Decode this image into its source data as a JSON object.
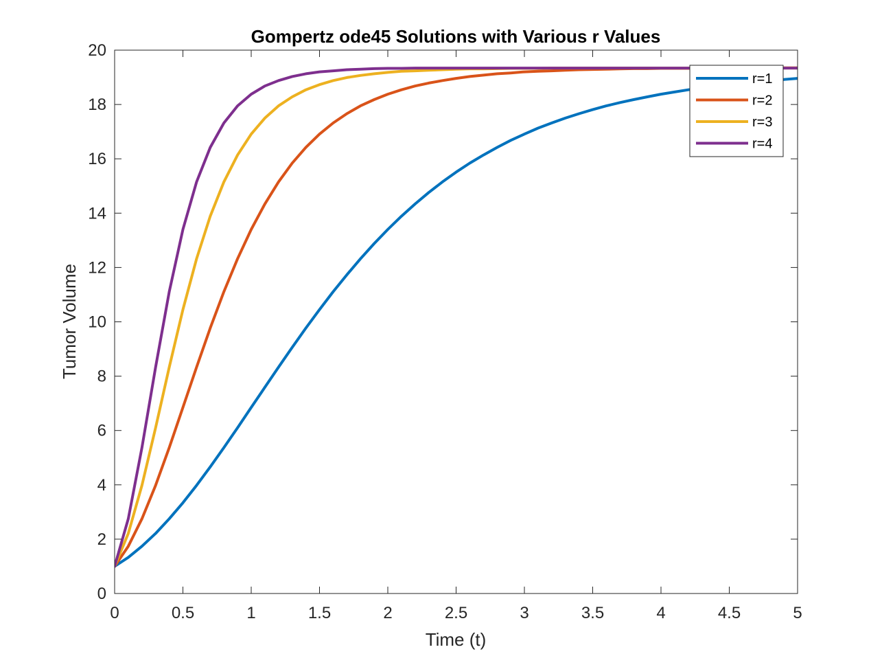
{
  "chart_data": {
    "type": "line",
    "title": "Gompertz ode45 Solutions with Various r Values",
    "xlabel": "Time (t)",
    "ylabel": "Tumor Volume",
    "xlim": [
      0,
      5
    ],
    "ylim": [
      0,
      20
    ],
    "xticks": [
      0,
      0.5,
      1,
      1.5,
      2,
      2.5,
      3,
      3.5,
      4,
      4.5,
      5
    ],
    "xtick_labels": [
      "0",
      "0.5",
      "1",
      "1.5",
      "2",
      "2.5",
      "3",
      "3.5",
      "4",
      "4.5",
      "5"
    ],
    "yticks": [
      0,
      2,
      4,
      6,
      8,
      10,
      12,
      14,
      16,
      18,
      20
    ],
    "ytick_labels": [
      "0",
      "2",
      "4",
      "6",
      "8",
      "10",
      "12",
      "14",
      "16",
      "18",
      "20"
    ],
    "grid": false,
    "legend_position": "top-right",
    "x": [
      0,
      0.1,
      0.2,
      0.3,
      0.4,
      0.5,
      0.6,
      0.7,
      0.8,
      0.9,
      1.0,
      1.1,
      1.2,
      1.3,
      1.4,
      1.5,
      1.6,
      1.7,
      1.8,
      1.9,
      2.0,
      2.1,
      2.2,
      2.3,
      2.4,
      2.5,
      2.6,
      2.7,
      2.8,
      2.9,
      3.0,
      3.1,
      3.2,
      3.3,
      3.4,
      3.5,
      3.6,
      3.7,
      3.8,
      3.9,
      4.0,
      4.1,
      4.2,
      4.3,
      4.4,
      4.5,
      4.6,
      4.7,
      4.8,
      4.9,
      5.0
    ],
    "series": [
      {
        "name": "r=1",
        "color": "#0072BD",
        "values": [
          1.0,
          1.33,
          1.74,
          2.21,
          2.75,
          3.34,
          3.98,
          4.66,
          5.37,
          6.1,
          6.85,
          7.59,
          8.33,
          9.06,
          9.77,
          10.45,
          11.11,
          11.73,
          12.32,
          12.88,
          13.4,
          13.89,
          14.34,
          14.76,
          15.15,
          15.51,
          15.84,
          16.14,
          16.42,
          16.68,
          16.91,
          17.13,
          17.32,
          17.5,
          17.66,
          17.81,
          17.95,
          18.07,
          18.18,
          18.28,
          18.38,
          18.46,
          18.54,
          18.61,
          18.68,
          18.73,
          18.79,
          18.84,
          18.88,
          18.92,
          18.96
        ]
      },
      {
        "name": "r=2",
        "color": "#D95319",
        "values": [
          1.0,
          1.74,
          2.75,
          3.98,
          5.37,
          6.85,
          8.33,
          9.77,
          11.11,
          12.32,
          13.4,
          14.34,
          15.15,
          15.84,
          16.42,
          16.91,
          17.32,
          17.66,
          17.95,
          18.18,
          18.38,
          18.54,
          18.68,
          18.79,
          18.88,
          18.96,
          19.03,
          19.08,
          19.13,
          19.16,
          19.2,
          19.22,
          19.24,
          19.26,
          19.28,
          19.29,
          19.3,
          19.31,
          19.32,
          19.32,
          19.33,
          19.33,
          19.33,
          19.34,
          19.34,
          19.34,
          19.34,
          19.35,
          19.35,
          19.35,
          19.35
        ]
      },
      {
        "name": "r=3",
        "color": "#EDB120",
        "values": [
          1.0,
          2.21,
          3.98,
          6.1,
          8.33,
          10.45,
          12.32,
          13.89,
          15.15,
          16.14,
          16.91,
          17.5,
          17.95,
          18.28,
          18.54,
          18.73,
          18.88,
          18.99,
          19.07,
          19.13,
          19.18,
          19.22,
          19.24,
          19.26,
          19.28,
          19.3,
          19.31,
          19.31,
          19.32,
          19.33,
          19.33,
          19.33,
          19.34,
          19.34,
          19.34,
          19.34,
          19.34,
          19.34,
          19.34,
          19.34,
          19.34,
          19.34,
          19.34,
          19.34,
          19.34,
          19.34,
          19.34,
          19.34,
          19.34,
          19.34,
          19.34
        ]
      },
      {
        "name": "r=4",
        "color": "#7E2F8E",
        "values": [
          1.0,
          2.75,
          5.37,
          8.33,
          11.11,
          13.4,
          15.15,
          16.42,
          17.32,
          17.95,
          18.38,
          18.68,
          18.88,
          19.03,
          19.13,
          19.2,
          19.24,
          19.28,
          19.3,
          19.32,
          19.33,
          19.33,
          19.34,
          19.34,
          19.34,
          19.34,
          19.34,
          19.34,
          19.34,
          19.34,
          19.34,
          19.34,
          19.34,
          19.34,
          19.34,
          19.34,
          19.34,
          19.34,
          19.34,
          19.34,
          19.34,
          19.34,
          19.34,
          19.34,
          19.34,
          19.34,
          19.34,
          19.34,
          19.34,
          19.34,
          19.34
        ]
      }
    ]
  }
}
